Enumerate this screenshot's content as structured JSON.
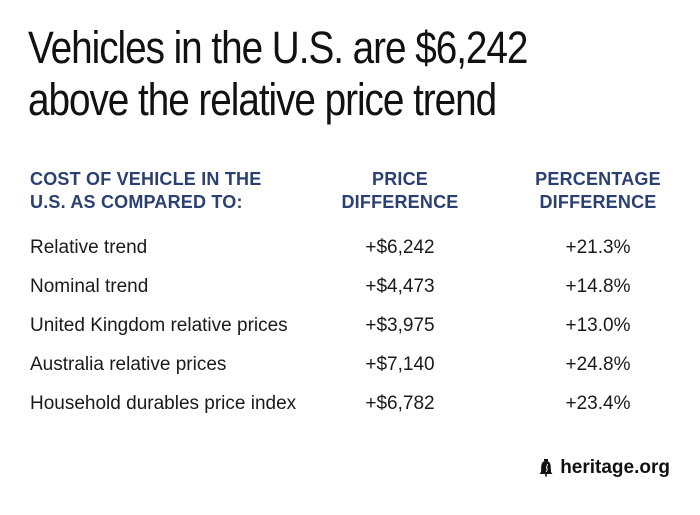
{
  "title_lines": [
    "Vehicles in the U.S. are $6,242",
    "above the relative price trend"
  ],
  "chart_data": {
    "type": "table",
    "title": "Vehicles in the U.S. are $6,242 above the relative price trend",
    "columns": [
      [
        "COST OF VEHICLE IN THE",
        "U.S. AS COMPARED TO:"
      ],
      [
        "PRICE",
        "DIFFERENCE"
      ],
      [
        "PERCENTAGE",
        "DIFFERENCE"
      ]
    ],
    "rows": [
      {
        "label": "Relative trend",
        "price_difference": "+$6,242",
        "percentage_difference": "+21.3%"
      },
      {
        "label": "Nominal trend",
        "price_difference": "+$4,473",
        "percentage_difference": "+14.8%"
      },
      {
        "label": "United Kingdom relative prices",
        "price_difference": "+$3,975",
        "percentage_difference": "+13.0%"
      },
      {
        "label": "Australia relative prices",
        "price_difference": "+$7,140",
        "percentage_difference": "+24.8%"
      },
      {
        "label": "Household durables price index",
        "price_difference": "+$6,782",
        "percentage_difference": "+23.4%"
      }
    ]
  },
  "brand": {
    "text": "heritage.org",
    "icon": "liberty-bell-icon"
  },
  "colors": {
    "header": "#2a3f72",
    "text": "#1a1a1a",
    "background": "#ffffff"
  }
}
